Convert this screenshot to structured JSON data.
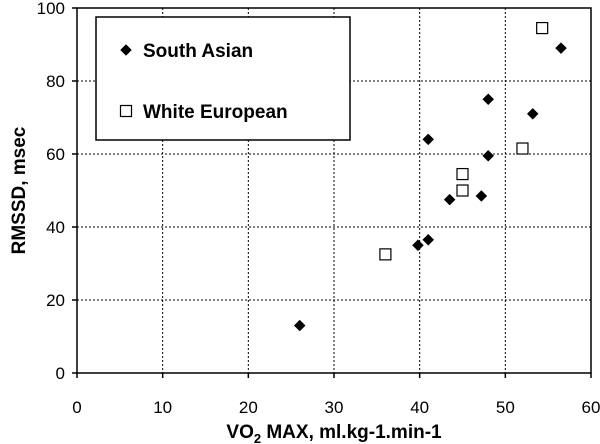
{
  "chart_data": {
    "type": "scatter",
    "xlabel_parts": [
      "VO",
      "2",
      " MAX, ml.kg-1.min-1"
    ],
    "ylabel": "RMSSD, msec",
    "xlim": [
      0,
      60
    ],
    "ylim": [
      0,
      100
    ],
    "x_ticks": [
      0,
      10,
      20,
      30,
      40,
      50,
      60
    ],
    "y_ticks": [
      0,
      20,
      40,
      60,
      80,
      100
    ],
    "grid": true,
    "legend_position": "top-left",
    "series": [
      {
        "name": "South Asian",
        "marker": "diamond-filled",
        "color": "#000000",
        "points": [
          [
            26,
            13
          ],
          [
            39.8,
            35
          ],
          [
            41,
            36.5
          ],
          [
            41,
            64
          ],
          [
            43.5,
            47.5
          ],
          [
            47.2,
            48.5
          ],
          [
            48,
            59.5
          ],
          [
            48,
            75
          ],
          [
            53.2,
            71
          ],
          [
            56.5,
            89
          ]
        ]
      },
      {
        "name": "White European",
        "marker": "square-open",
        "color": "#000000",
        "points": [
          [
            36,
            32.5
          ],
          [
            45,
            50
          ],
          [
            45,
            54.5
          ],
          [
            52,
            61.5
          ],
          [
            54.3,
            94.5
          ]
        ]
      }
    ]
  }
}
